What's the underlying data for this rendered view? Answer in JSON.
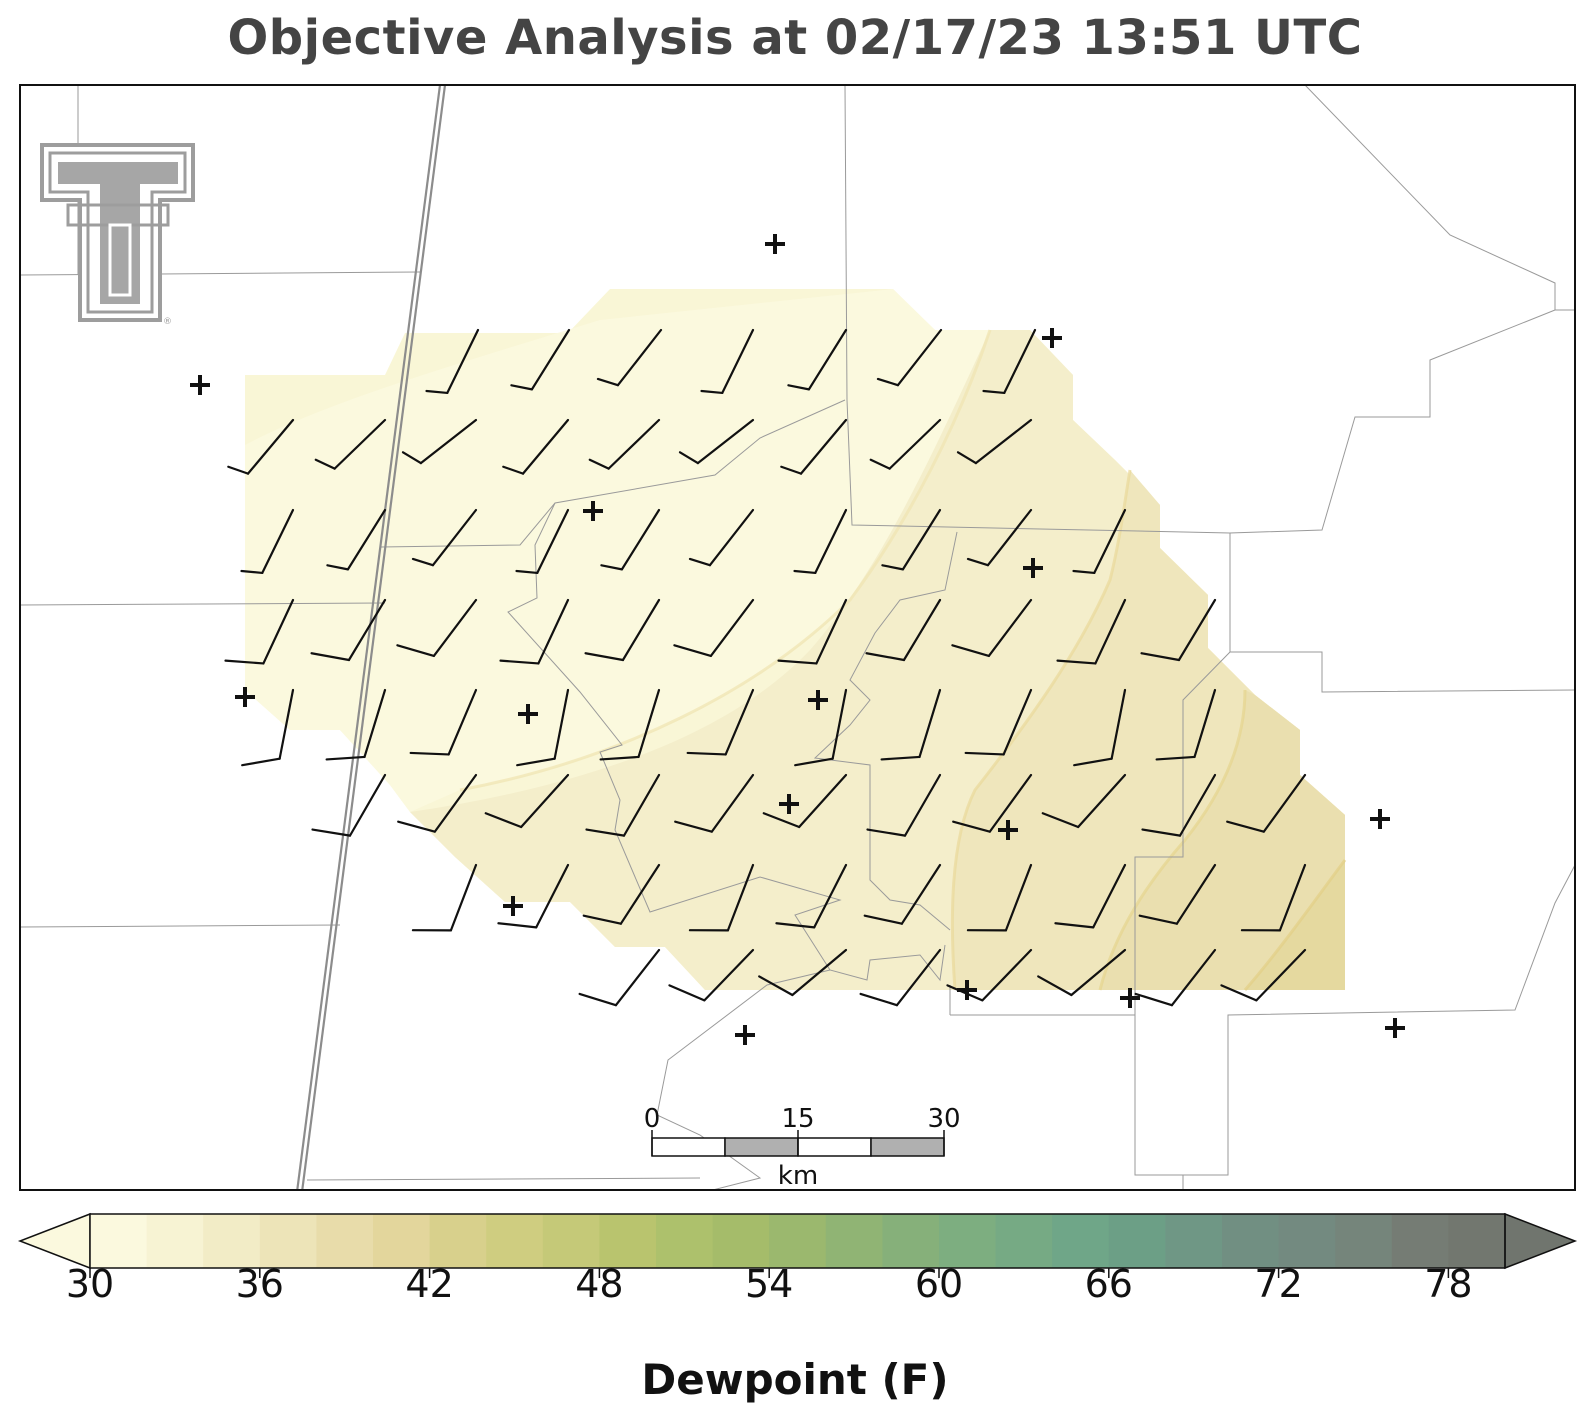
{
  "title": "Objective Analysis at 02/17/23 13:51 UTC",
  "colorbar": {
    "label": "Dewpoint (F)",
    "ticks": [
      "30",
      "36",
      "42",
      "48",
      "54",
      "60",
      "66",
      "72",
      "78"
    ],
    "min": 30,
    "max": 80,
    "step": 2,
    "colors": [
      "#fbf9de",
      "#f7f3d3",
      "#f2ecc6",
      "#ede4b8",
      "#e8dcaa",
      "#e3d69c",
      "#d8d08c",
      "#cfcd80",
      "#c5c978",
      "#b9c46e",
      "#adc16c",
      "#a5bc6a",
      "#9bb86e",
      "#90b474",
      "#86b07a",
      "#7dae80",
      "#76aa84",
      "#6fa688",
      "#6c9f86",
      "#6f9785",
      "#718f82",
      "#738a80",
      "#75857b",
      "#757c74",
      "#72776f"
    ],
    "extend_under_color": "#fbf9de",
    "extend_over_color": "#70756e"
  },
  "scale_bar": {
    "labels": [
      "0",
      "15",
      "30"
    ],
    "unit": "km"
  },
  "field": {
    "variable": "Dewpoint (F)",
    "range_shown": [
      30,
      40
    ]
  },
  "stations": 21,
  "logo": "texas-tech-double-t-logo"
}
